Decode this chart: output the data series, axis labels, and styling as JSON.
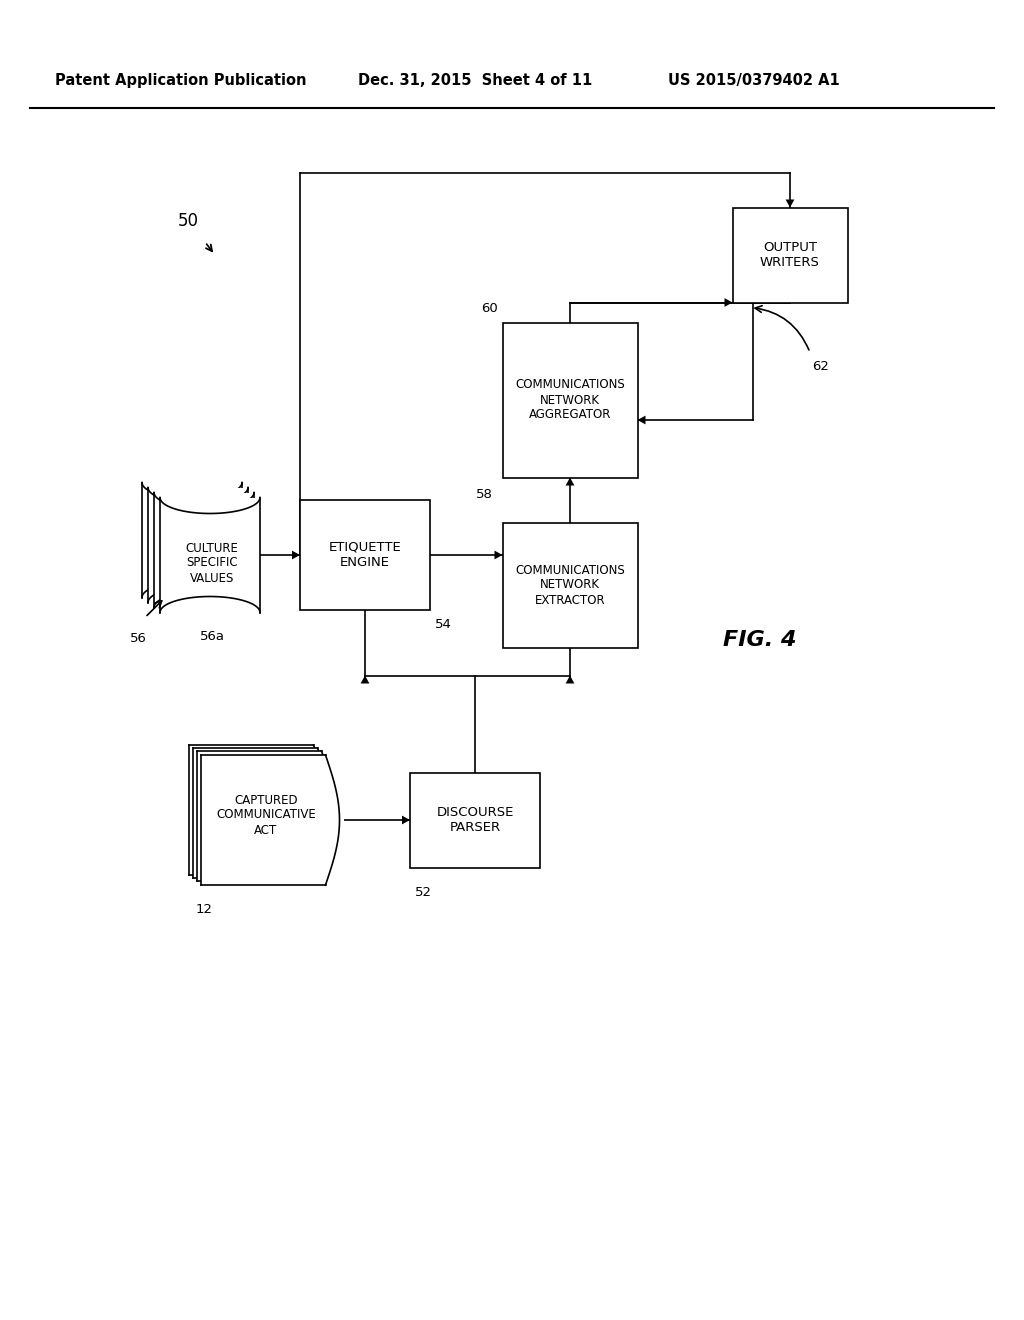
{
  "bg_color": "#ffffff",
  "header_left": "Patent Application Publication",
  "header_mid": "Dec. 31, 2015  Sheet 4 of 11",
  "header_right": "US 2015/0379402 A1",
  "fig_label": "FIG. 4",
  "figw": 10.24,
  "figh": 13.2,
  "dpi": 100
}
